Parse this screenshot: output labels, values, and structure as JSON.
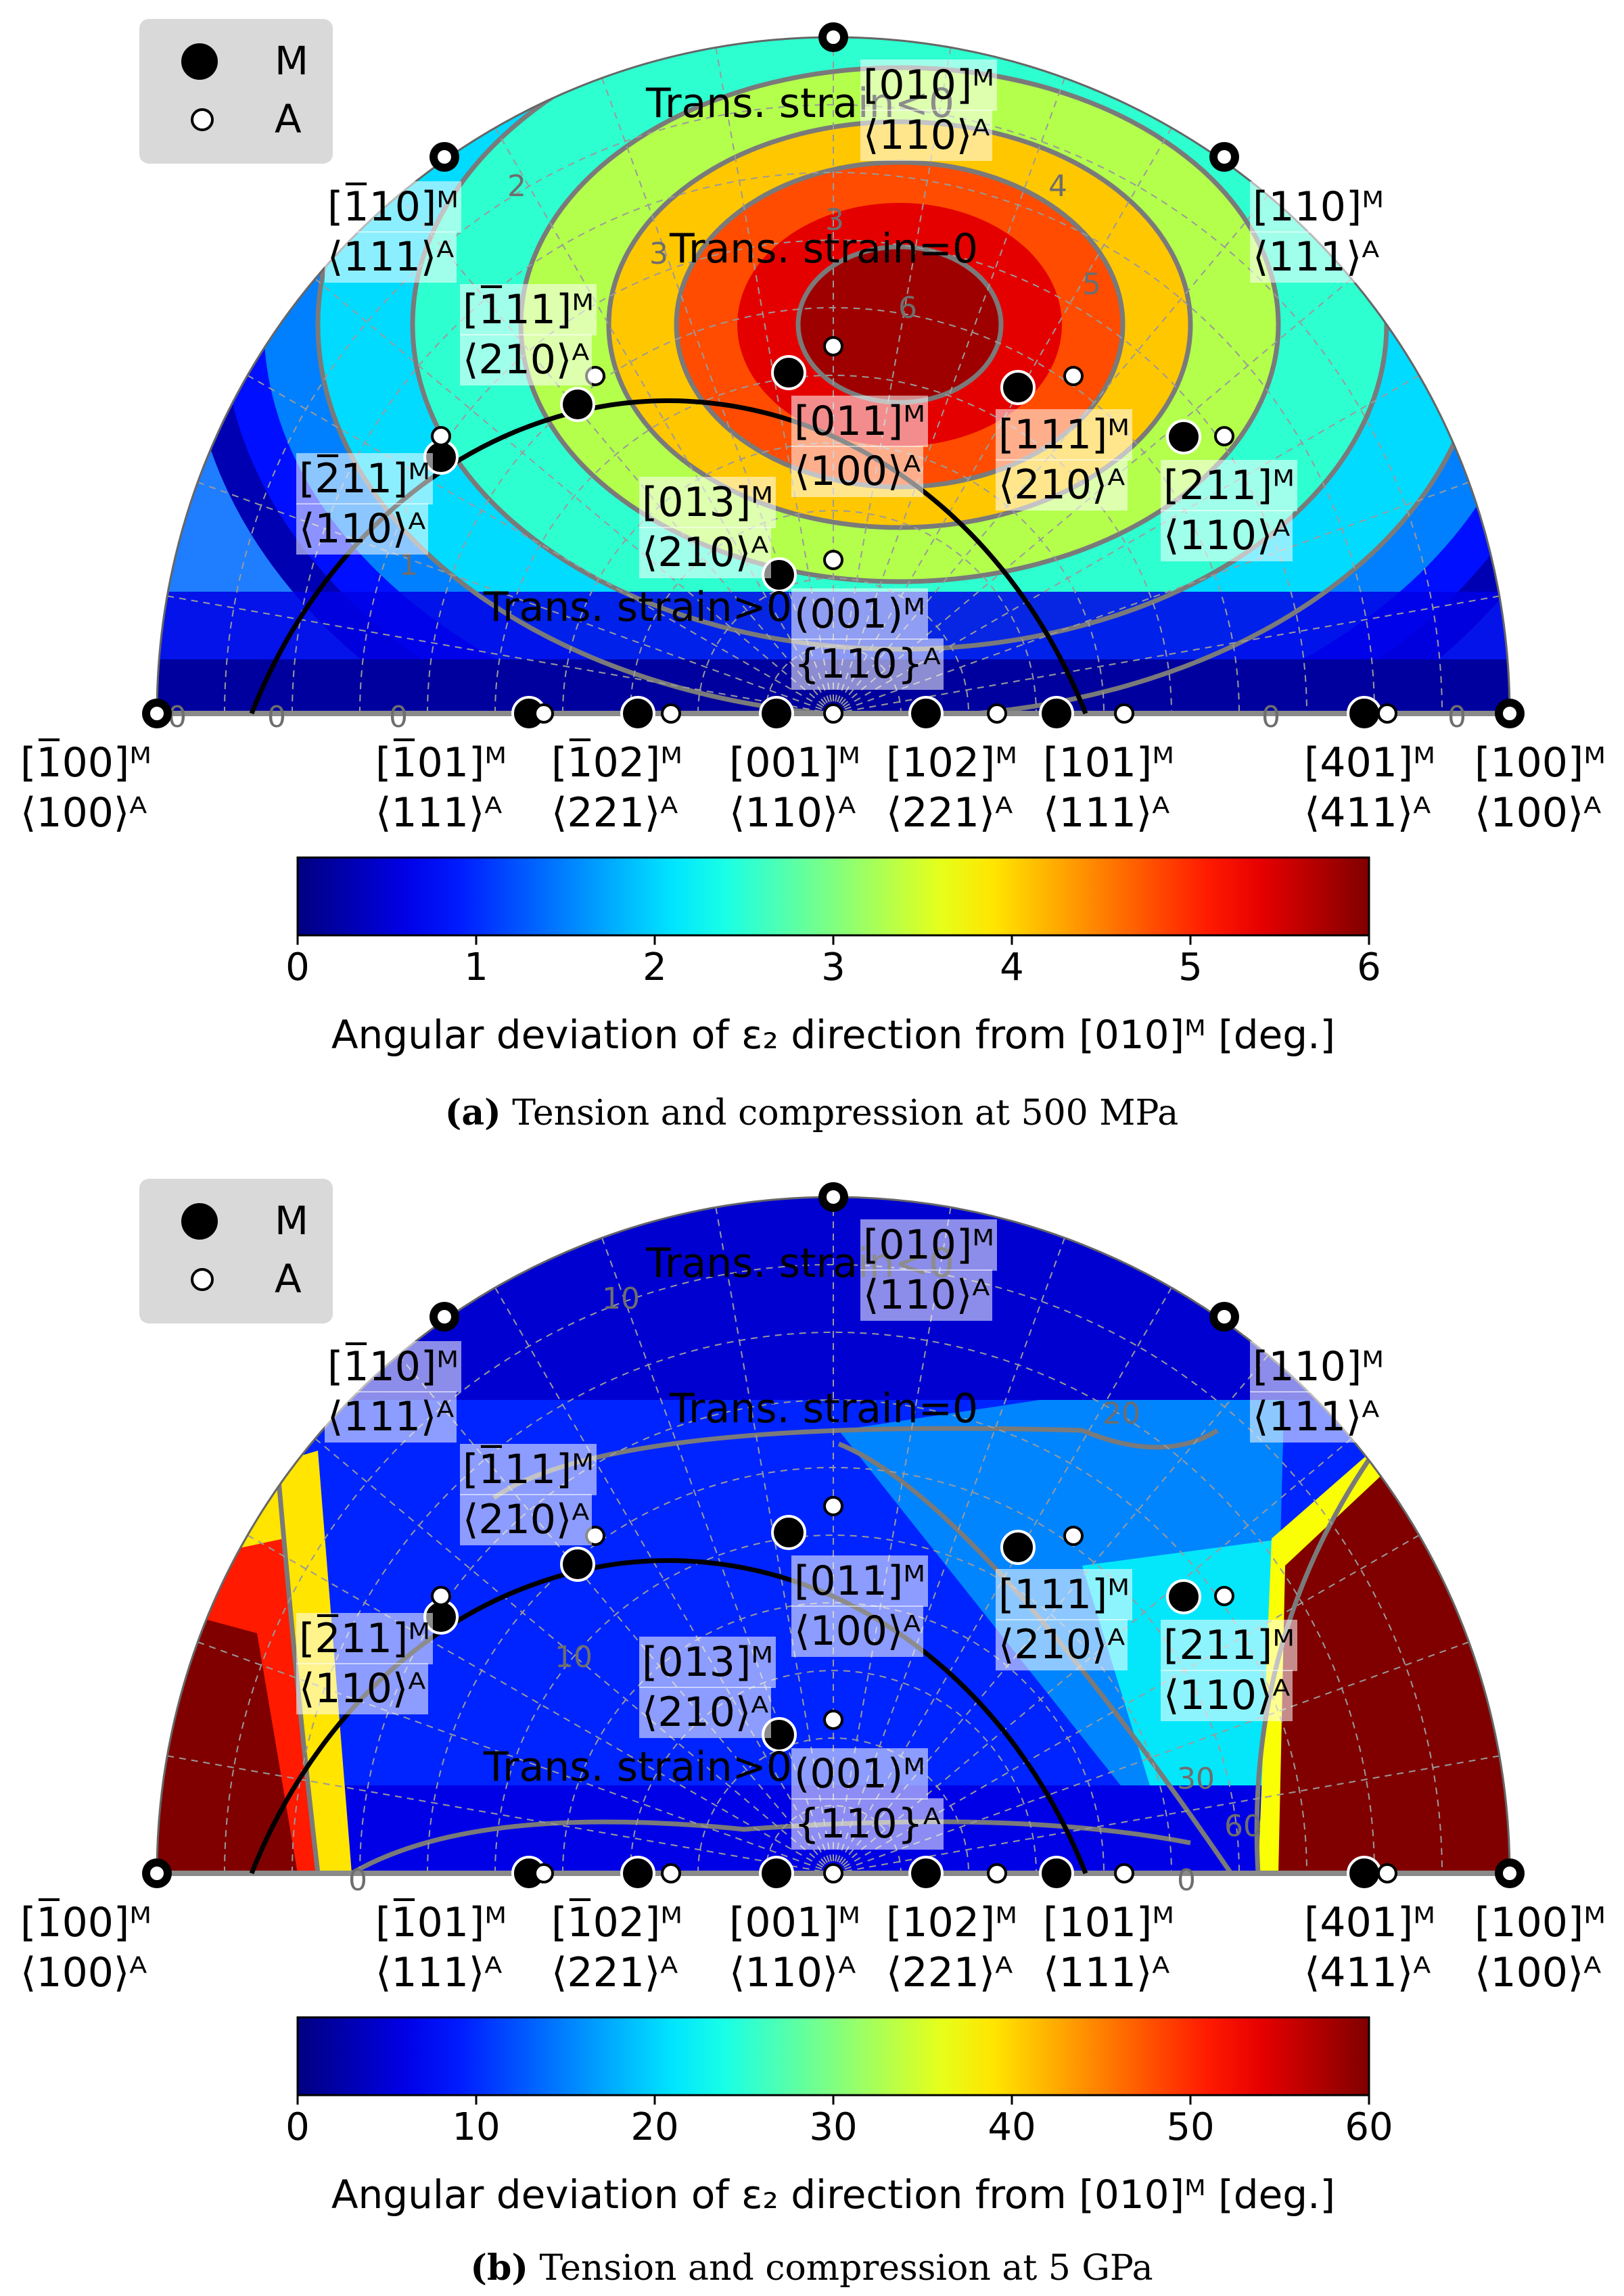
{
  "chart_data": [
    {
      "type": "heatmap",
      "title": "",
      "caption_tag": "(a)",
      "caption_text": "Tension and compression at 500 MPa",
      "legend": {
        "entries": [
          "M",
          "A"
        ],
        "placement": "top-left"
      },
      "colorbar": {
        "label": "Angular deviation of ε₂ direction from [010]ᴹ [deg.]",
        "min": 0,
        "max": 6,
        "ticks": [
          "0",
          "1",
          "2",
          "3",
          "4",
          "5",
          "6"
        ],
        "colormap": "jet"
      },
      "contour_levels": [
        "0",
        "1",
        "2",
        "3",
        "4",
        "5",
        "6"
      ],
      "region_labels": [
        "Trans. strain<0",
        "Trans. strain=0",
        "Trans. strain>0"
      ],
      "poles": [
        {
          "m": "[1̅00]ᴹ",
          "a": "⟨100⟩ᴬ"
        },
        {
          "m": "[1̅01]ᴹ",
          "a": "⟨111⟩ᴬ"
        },
        {
          "m": "[1̅02]ᴹ",
          "a": "⟨221⟩ᴬ"
        },
        {
          "m": "[001]ᴹ",
          "a": "⟨110⟩ᴬ"
        },
        {
          "m": "[102]ᴹ",
          "a": "⟨221⟩ᴬ"
        },
        {
          "m": "[101]ᴹ",
          "a": "⟨111⟩ᴬ"
        },
        {
          "m": "[401]ᴹ",
          "a": "⟨411⟩ᴬ"
        },
        {
          "m": "[100]ᴹ",
          "a": "⟨100⟩ᴬ"
        },
        {
          "m": "[010]ᴹ",
          "a": "⟨110⟩ᴬ"
        },
        {
          "m": "[1̅10]ᴹ",
          "a": "⟨111⟩ᴬ"
        },
        {
          "m": "[110]ᴹ",
          "a": "⟨111⟩ᴬ"
        },
        {
          "m": "[1̅11]ᴹ",
          "a": "⟨210⟩ᴬ"
        },
        {
          "m": "[2̅11]ᴹ",
          "a": "⟨110⟩ᴬ"
        },
        {
          "m": "[011]ᴹ",
          "a": "⟨100⟩ᴬ"
        },
        {
          "m": "[111]ᴹ",
          "a": "⟨210⟩ᴬ"
        },
        {
          "m": "[211]ᴹ",
          "a": "⟨110⟩ᴬ"
        },
        {
          "m": "[013]ᴹ",
          "a": "⟨210⟩ᴬ"
        },
        {
          "m": "(001)ᴹ",
          "a": "{110}ᴬ"
        }
      ]
    },
    {
      "type": "heatmap",
      "title": "",
      "caption_tag": "(b)",
      "caption_text": "Tension and compression at 5 GPa",
      "legend": {
        "entries": [
          "M",
          "A"
        ],
        "placement": "top-left"
      },
      "colorbar": {
        "label": "Angular deviation of ε₂ direction from [010]ᴹ [deg.]",
        "min": 0,
        "max": 60,
        "ticks": [
          "0",
          "10",
          "20",
          "30",
          "40",
          "50",
          "60"
        ],
        "colormap": "jet"
      },
      "contour_levels": [
        "0",
        "10",
        "20",
        "30",
        "60"
      ],
      "region_labels": [
        "Trans. strain<0",
        "Trans. strain=0",
        "Trans. strain>0"
      ],
      "poles": [
        {
          "m": "[1̅00]ᴹ",
          "a": "⟨100⟩ᴬ"
        },
        {
          "m": "[1̅01]ᴹ",
          "a": "⟨111⟩ᴬ"
        },
        {
          "m": "[1̅02]ᴹ",
          "a": "⟨221⟩ᴬ"
        },
        {
          "m": "[001]ᴹ",
          "a": "⟨110⟩ᴬ"
        },
        {
          "m": "[102]ᴹ",
          "a": "⟨221⟩ᴬ"
        },
        {
          "m": "[101]ᴹ",
          "a": "⟨111⟩ᴬ"
        },
        {
          "m": "[401]ᴹ",
          "a": "⟨411⟩ᴬ"
        },
        {
          "m": "[100]ᴹ",
          "a": "⟨100⟩ᴬ"
        },
        {
          "m": "[010]ᴹ",
          "a": "⟨110⟩ᴬ"
        },
        {
          "m": "[1̅10]ᴹ",
          "a": "⟨111⟩ᴬ"
        },
        {
          "m": "[110]ᴹ",
          "a": "⟨111⟩ᴬ"
        },
        {
          "m": "[1̅11]ᴹ",
          "a": "⟨210⟩ᴬ"
        },
        {
          "m": "[2̅11]ᴹ",
          "a": "⟨110⟩ᴬ"
        },
        {
          "m": "[011]ᴹ",
          "a": "⟨100⟩ᴬ"
        },
        {
          "m": "[111]ᴹ",
          "a": "⟨210⟩ᴬ"
        },
        {
          "m": "[211]ᴹ",
          "a": "⟨110⟩ᴬ"
        },
        {
          "m": "[013]ᴹ",
          "a": "⟨210⟩ᴬ"
        },
        {
          "m": "(001)ᴹ",
          "a": "{110}ᴬ"
        }
      ]
    }
  ]
}
